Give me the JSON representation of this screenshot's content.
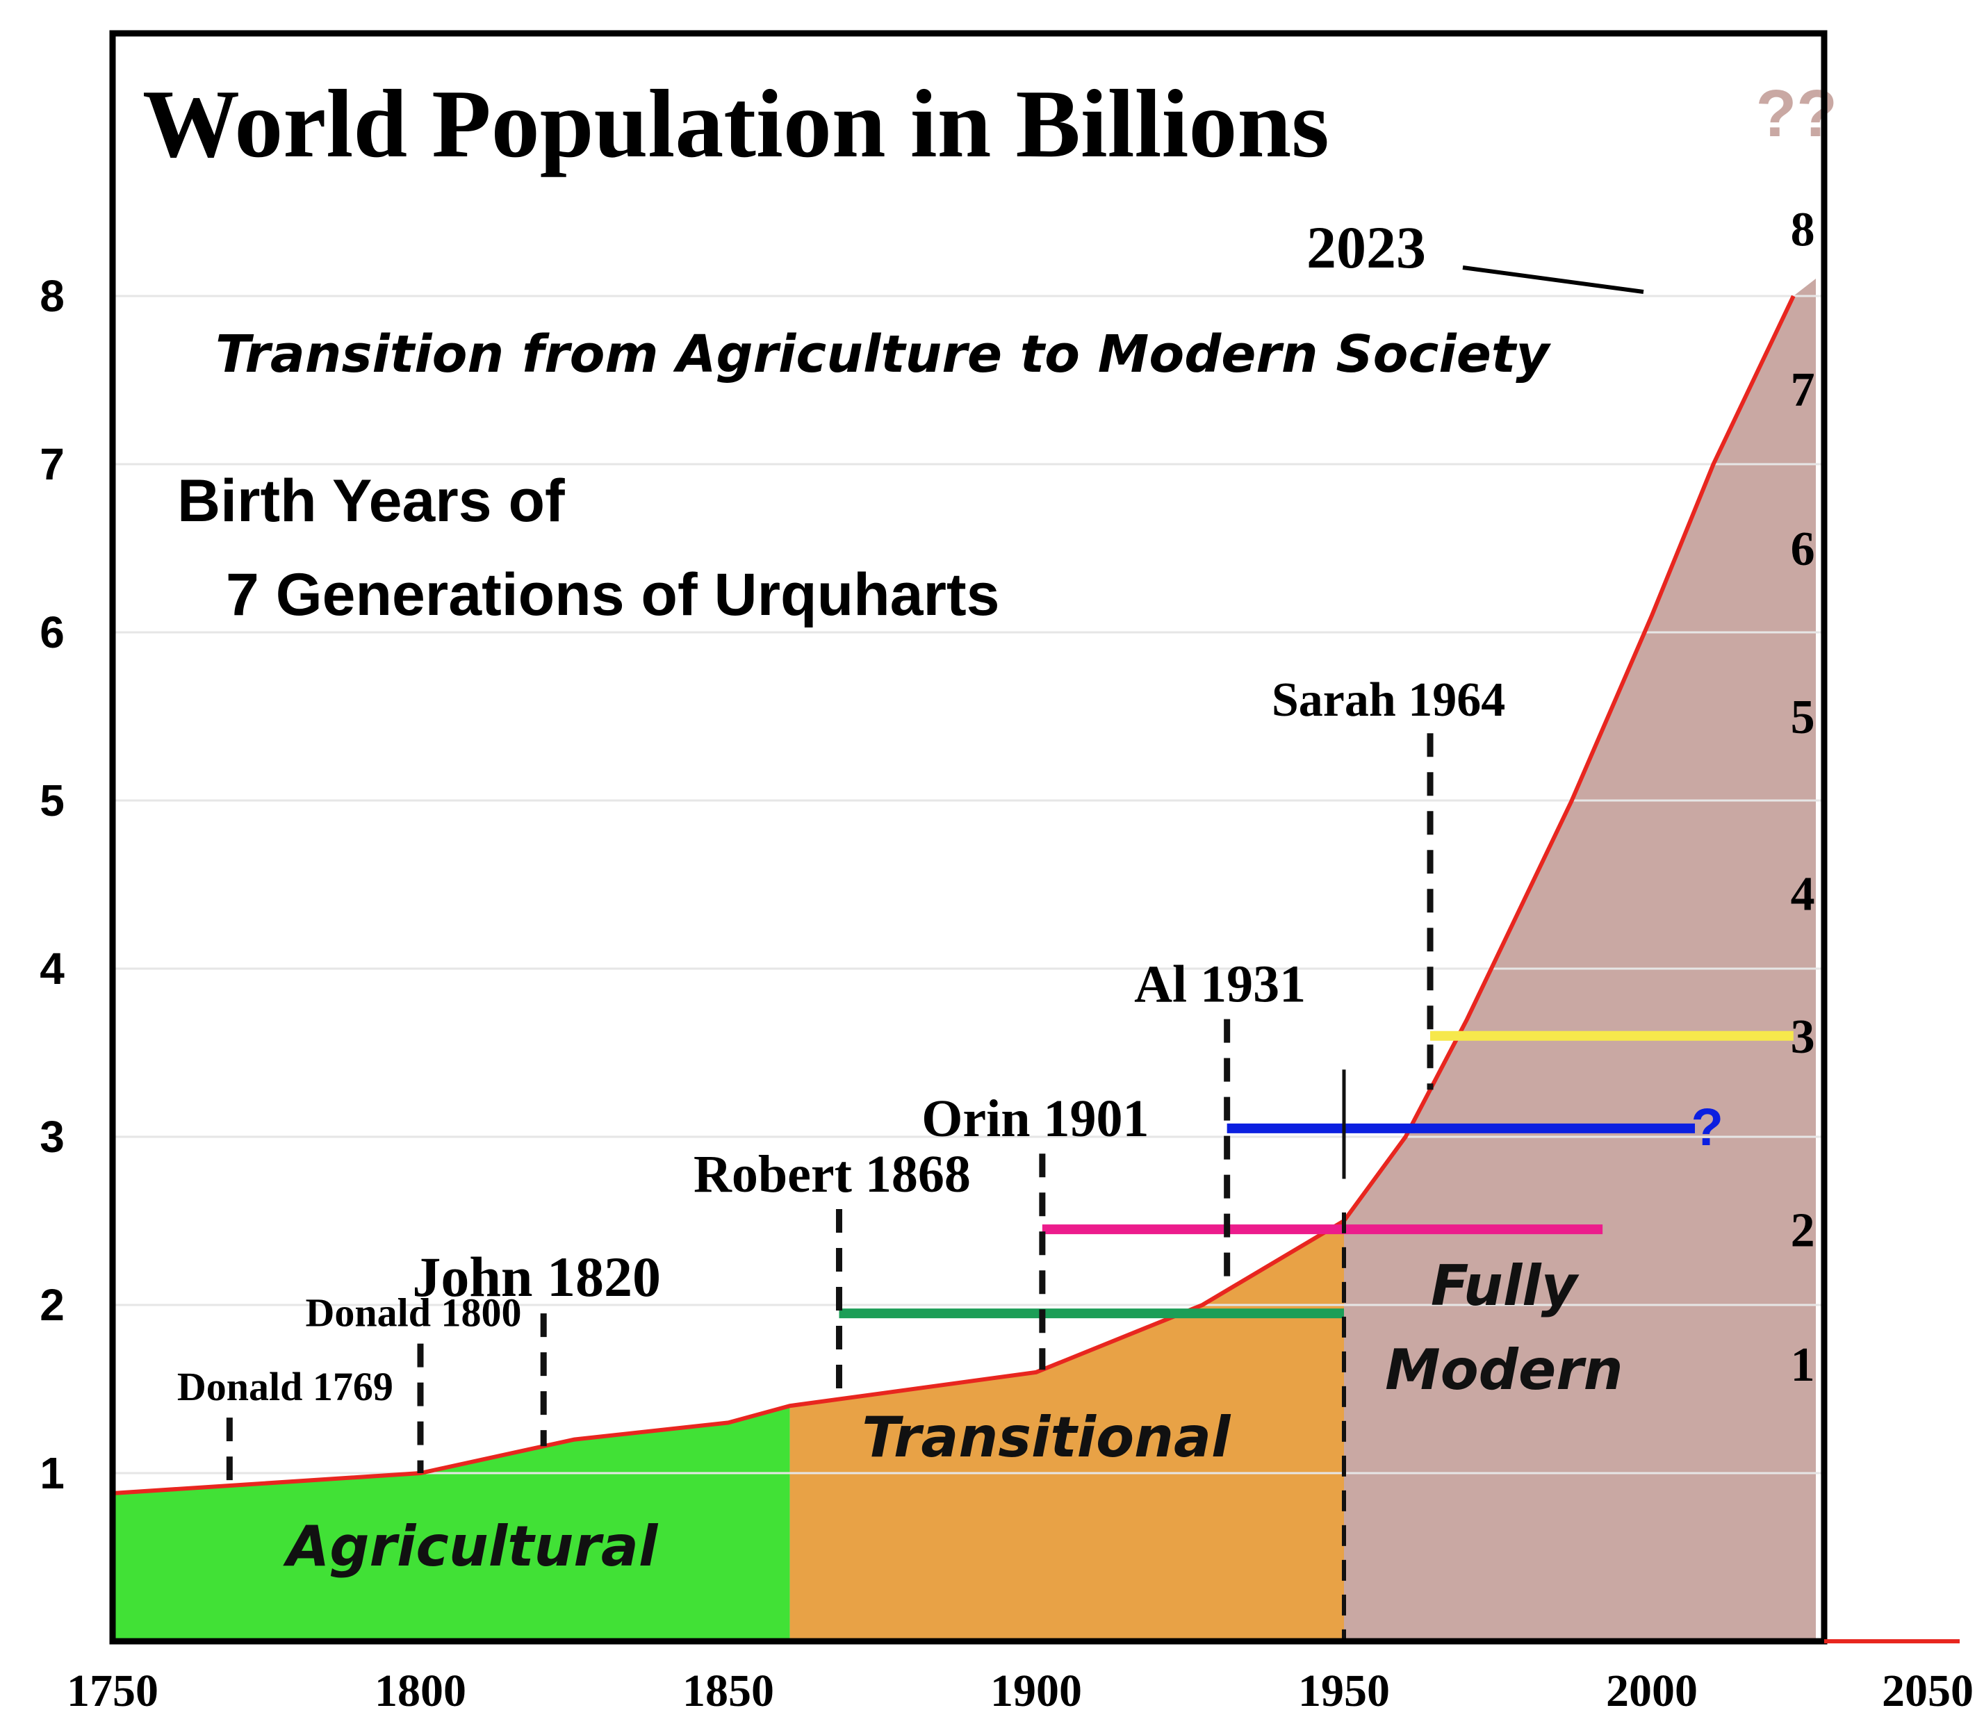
{
  "chart_data": {
    "type": "area",
    "title": "World Population in Billions",
    "subtitle": "Transition from Agriculture to Modern Society",
    "heading": [
      "Birth Years of",
      "7 Generations of Urquharts"
    ],
    "xlim": [
      1750,
      2050
    ],
    "ylim": [
      0,
      9.5
    ],
    "x_ticks": [
      "1750",
      "1800",
      "1850",
      "1900",
      "1950",
      "2000",
      "2050"
    ],
    "y_ticks": [
      "1",
      "2",
      "3",
      "4",
      "5",
      "6",
      "7",
      "8"
    ],
    "population": {
      "x": [
        1750,
        1800,
        1825,
        1850,
        1860,
        1900,
        1927,
        1950,
        1960,
        1970,
        1987,
        2000,
        2010,
        2023
      ],
      "y": [
        0.88,
        1.0,
        1.2,
        1.3,
        1.4,
        1.6,
        2.0,
        2.5,
        3.0,
        3.7,
        5.0,
        6.1,
        7.0,
        8.0
      ],
      "line_color": "#e8261f"
    },
    "eras": [
      {
        "label": "Agricultural",
        "x0": 1750,
        "x1": 1860,
        "color": "#41e136"
      },
      {
        "label": "Transitional",
        "x0": 1860,
        "x1": 1950,
        "color": "#e8a246"
      },
      {
        "label": "Fully Modern",
        "label_lines": [
          "Fully",
          "Modern"
        ],
        "x0": 1950,
        "x1": 2023,
        "color": "#c9a8a3"
      }
    ],
    "births": [
      {
        "label": "Donald 1769",
        "year": 1769,
        "lifespan_end": null
      },
      {
        "label": "Donald 1800",
        "year": 1800,
        "lifespan_end": null
      },
      {
        "label": "John 1820",
        "year": 1820,
        "lifespan_end": null
      },
      {
        "label": "Robert 1868",
        "year": 1868,
        "lifespan_end": 1950,
        "color": "#1c9e57",
        "level": 1.95
      },
      {
        "label": "Orin 1901",
        "year": 1901,
        "lifespan_end": 1992,
        "color": "#ec1c8c",
        "level": 2.45
      },
      {
        "label": "Al 1931",
        "year": 1931,
        "lifespan_end": 2007,
        "color": "#0b1fe0",
        "level": 3.05
      },
      {
        "label": "Sarah 1964",
        "year": 1964,
        "lifespan_end": 2023,
        "color": "#f6e84c",
        "level": 3.6
      }
    ],
    "generation_numbers": [
      "1",
      "2",
      "3",
      "4",
      "5",
      "6",
      "7",
      "8"
    ],
    "callout_year": "2023",
    "future_label": "??",
    "open_end_label": "?"
  }
}
